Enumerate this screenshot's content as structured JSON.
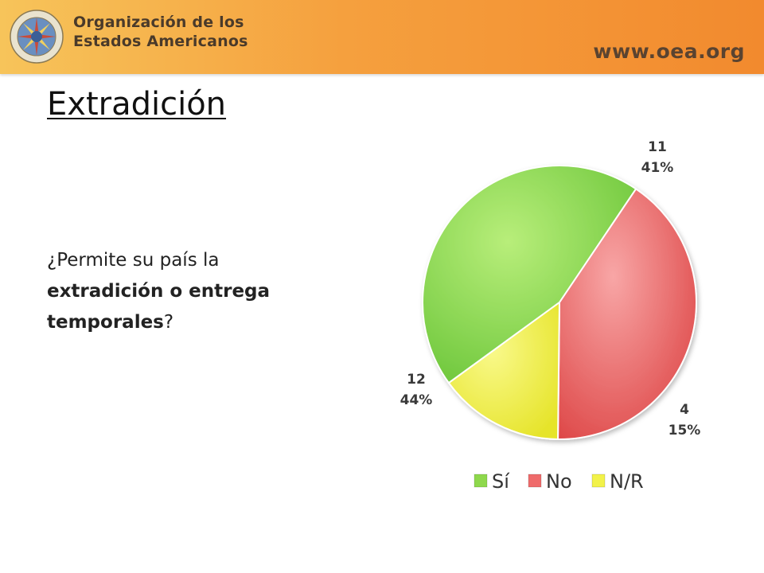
{
  "header": {
    "org_line1": "Organización de los",
    "org_line2": "Estados Americanos",
    "url": "www.oea.org"
  },
  "slide": {
    "title": "Extradición",
    "question_start": "¿Permite su país la ",
    "question_bold": "extradición o entrega temporales",
    "question_end": "?"
  },
  "colors": {
    "si": "#8ed84c",
    "no": "#ef6b6b",
    "nr": "#f2f24a",
    "header_start": "#f7c45a",
    "header_end": "#f28a2e"
  },
  "chart_data": {
    "type": "pie",
    "title": "",
    "categories": [
      "Sí",
      "No",
      "N/R"
    ],
    "values": [
      12,
      11,
      4
    ],
    "percent_labels": [
      "44%",
      "41%",
      "15%"
    ],
    "value_labels": [
      "12",
      "11",
      "4"
    ],
    "colors": [
      "#8ed84c",
      "#ef6b6b",
      "#f2f24a"
    ],
    "legend_position": "bottom"
  }
}
